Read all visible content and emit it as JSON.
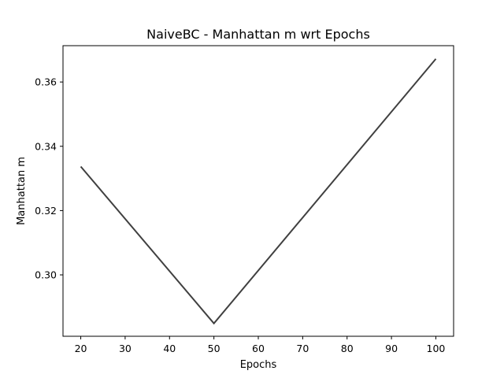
{
  "chart_data": {
    "type": "line",
    "title": "NaiveBC - Manhattan m wrt Epochs",
    "xlabel": "Epochs",
    "ylabel": "Manhattan m",
    "x": [
      20,
      50,
      100
    ],
    "series": [
      {
        "values": [
          0.3337,
          0.2849,
          0.3672
        ],
        "color": "#404040"
      }
    ],
    "xlim": [
      16,
      104
    ],
    "ylim": [
      0.2809,
      0.3713
    ],
    "xticks": [
      20,
      30,
      40,
      50,
      60,
      70,
      80,
      90,
      100
    ],
    "yticks": [
      0.3,
      0.32,
      0.34,
      0.36
    ],
    "xtick_labels": [
      "20",
      "30",
      "40",
      "50",
      "60",
      "70",
      "80",
      "90",
      "100"
    ],
    "ytick_labels": [
      "0.30",
      "0.32",
      "0.34",
      "0.36"
    ],
    "grid": false,
    "legend": false
  }
}
